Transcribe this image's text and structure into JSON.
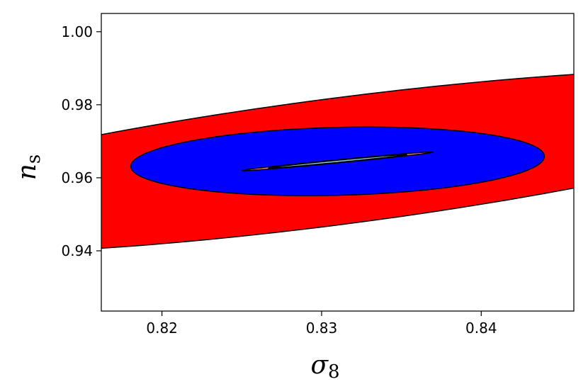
{
  "chart_data": {
    "type": "contour",
    "xlabel": {
      "base": "σ",
      "sub": "8"
    },
    "ylabel": {
      "base": "n",
      "sub": "s"
    },
    "xlim": [
      0.8162,
      0.8458
    ],
    "ylim": [
      0.9235,
      1.005
    ],
    "xticks": [
      {
        "value": 0.82,
        "label": "0.82"
      },
      {
        "value": 0.83,
        "label": "0.83"
      },
      {
        "value": 0.84,
        "label": "0.84"
      }
    ],
    "yticks": [
      {
        "value": 0.94,
        "label": "0.94"
      },
      {
        "value": 0.96,
        "label": "0.96"
      },
      {
        "value": 0.98,
        "label": "0.98"
      },
      {
        "value": 1.0,
        "label": "1.00"
      }
    ],
    "grid": false,
    "legend": "none",
    "series": [
      {
        "center": [
          0.831,
          0.9645
        ],
        "rx": 0.0148,
        "ry": 0.0386,
        "rotate_deg": -55,
        "fill": "#ff0000"
      },
      {
        "center": [
          0.831,
          0.9645
        ],
        "rx": 0.0092,
        "ry": 0.0131,
        "rotate_deg": -78,
        "fill": "#0000ff"
      },
      {
        "center": [
          0.831,
          0.9645
        ],
        "rx": 0.0065,
        "ry": 0.0004,
        "rotate_deg": 23,
        "fill": "#fa8072"
      },
      {
        "center": [
          0.831,
          0.9645
        ],
        "rx": 0.0047,
        "ry": 0.00027,
        "rotate_deg": 23,
        "fill": "#87ceeb"
      }
    ]
  }
}
